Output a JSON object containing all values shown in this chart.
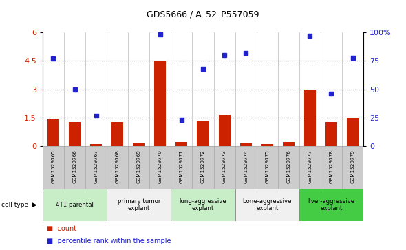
{
  "title": "GDS5666 / A_52_P557059",
  "samples": [
    "GSM1529765",
    "GSM1529766",
    "GSM1529767",
    "GSM1529768",
    "GSM1529769",
    "GSM1529770",
    "GSM1529771",
    "GSM1529772",
    "GSM1529773",
    "GSM1529774",
    "GSM1529775",
    "GSM1529776",
    "GSM1529777",
    "GSM1529778",
    "GSM1529779"
  ],
  "counts": [
    1.42,
    1.3,
    0.12,
    1.28,
    0.15,
    4.52,
    0.22,
    1.33,
    1.65,
    0.15,
    0.12,
    0.22,
    3.0,
    1.3,
    1.52
  ],
  "percentiles": [
    77,
    50,
    27,
    null,
    null,
    98,
    23,
    68,
    80,
    82,
    null,
    null,
    97,
    46,
    78
  ],
  "ylim_left": [
    0,
    6
  ],
  "ylim_right": [
    0,
    100
  ],
  "yticks_left": [
    0,
    1.5,
    3.0,
    4.5,
    6
  ],
  "yticks_right": [
    0,
    25,
    50,
    75,
    100
  ],
  "bar_color": "#cc2200",
  "dot_color": "#2222cc",
  "groups": [
    {
      "label": "4T1 parental",
      "start": 0,
      "end": 2,
      "color": "#c8eec8"
    },
    {
      "label": "primary tumor\nexplant",
      "start": 3,
      "end": 5,
      "color": "#f0f0f0"
    },
    {
      "label": "lung-aggressive\nexplant",
      "start": 6,
      "end": 8,
      "color": "#c8eec8"
    },
    {
      "label": "bone-aggressive\nexplant",
      "start": 9,
      "end": 11,
      "color": "#f0f0f0"
    },
    {
      "label": "liver-aggressive\nexplant",
      "start": 12,
      "end": 14,
      "color": "#44cc44"
    }
  ],
  "sample_bg": "#cccccc",
  "plot_bg": "#ffffff",
  "legend_count": "count",
  "legend_pct": "percentile rank within the sample",
  "cell_type_label": "cell type",
  "bar_width": 0.55
}
